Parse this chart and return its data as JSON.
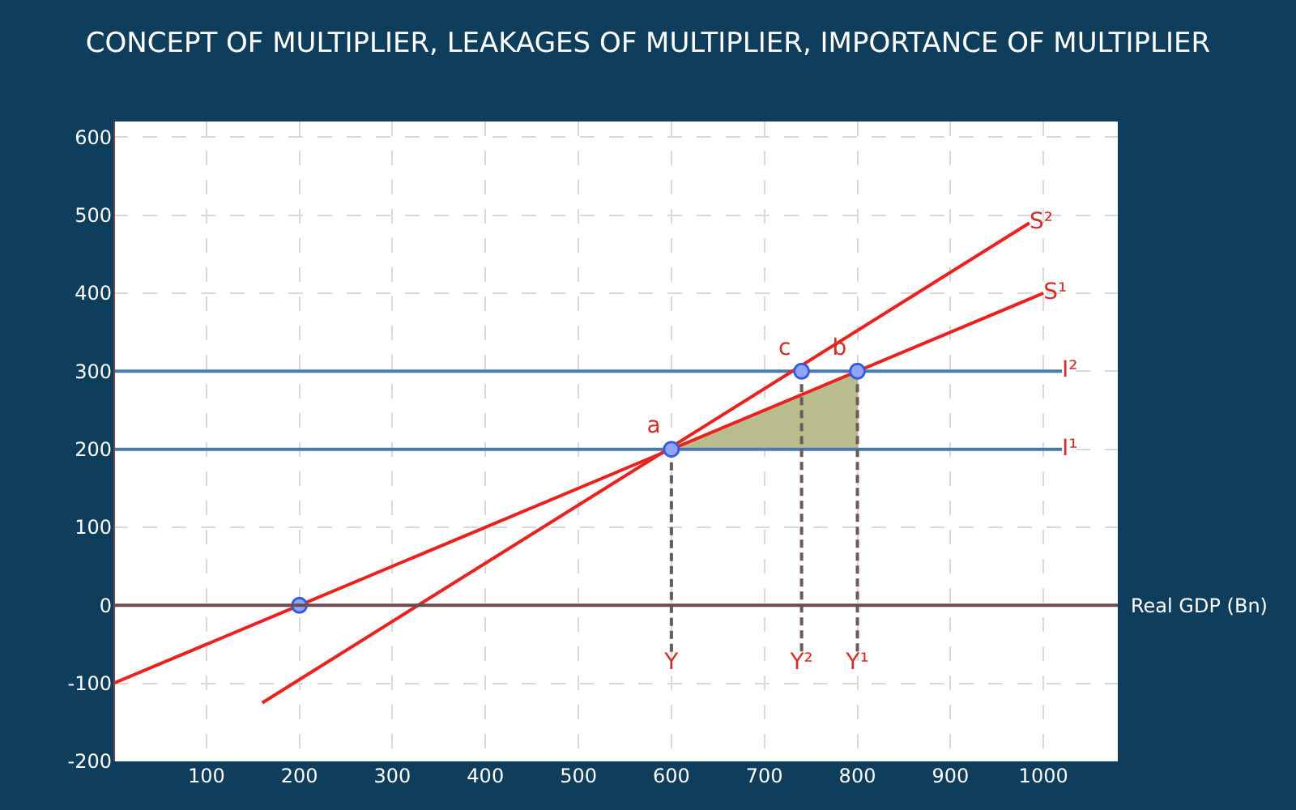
{
  "chart_data": {
    "type": "line",
    "title": "CONCEPT OF MULTIPLIER, LEAKAGES OF MULTIPLIER, IMPORTANCE OF MULTIPLIER",
    "xlabel": "Real GDP (Bn)",
    "xlim": [
      0,
      1080
    ],
    "ylim": [
      -200,
      620
    ],
    "xticks": [
      100,
      200,
      300,
      400,
      500,
      600,
      700,
      800,
      900,
      1000
    ],
    "yticks": [
      -200,
      -100,
      0,
      100,
      200,
      300,
      400,
      500,
      600
    ],
    "grid": true,
    "legend": false,
    "series": [
      {
        "type": "area",
        "color": "#b9bc8c",
        "x": [
          600,
          800,
          800
        ],
        "values": [
          200,
          300,
          200
        ]
      },
      {
        "name": "I¹",
        "color": "#4a78b0",
        "x": [
          0,
          1020
        ],
        "values": [
          200,
          200
        ],
        "marker": "none"
      },
      {
        "name": "I²",
        "color": "#4a78b0",
        "x": [
          0,
          1020
        ],
        "values": [
          300,
          300
        ],
        "marker": "none"
      },
      {
        "name": "S¹",
        "color": "#e8231f",
        "x": [
          0,
          1000
        ],
        "values": [
          -100,
          400
        ],
        "marker": "none"
      },
      {
        "name": "S²",
        "color": "#e8231f",
        "x": [
          160,
          985
        ],
        "values": [
          -125,
          490
        ],
        "marker": "none"
      },
      {
        "color": "#6b5a5a",
        "x": [
          600,
          600
        ],
        "values": [
          200,
          -60
        ],
        "marker": "none",
        "line_style": "dashed",
        "value_labels": [
          null,
          "Y"
        ]
      },
      {
        "color": "#6b5a5a",
        "x": [
          740,
          740
        ],
        "values": [
          300,
          -60
        ],
        "marker": "none",
        "line_style": "dashed",
        "value_labels": [
          null,
          "Y²"
        ]
      },
      {
        "color": "#6b5a5a",
        "x": [
          800,
          800
        ],
        "values": [
          300,
          -60
        ],
        "marker": "none",
        "line_style": "dashed",
        "value_labels": [
          null,
          "Y¹"
        ]
      },
      {
        "type": "scatter",
        "color": "#8fa6ff",
        "x": [
          200,
          600,
          740,
          800
        ],
        "values": [
          0,
          200,
          300,
          300
        ],
        "marker": "circle",
        "value_labels": [
          null,
          "a",
          "c",
          "b"
        ]
      }
    ]
  }
}
